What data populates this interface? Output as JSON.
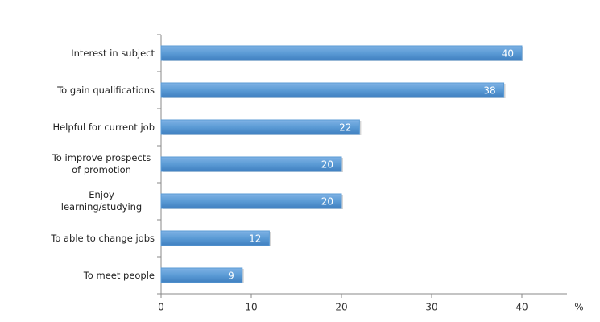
{
  "chart_data": {
    "type": "bar",
    "orientation": "horizontal",
    "categories": [
      "Interest in subject",
      "To gain qualifications",
      "Helpful for current job",
      "To improve prospects of promotion",
      "Enjoy learning/studying",
      "To able to change jobs",
      "To meet people"
    ],
    "values": [
      40,
      38,
      22,
      20,
      20,
      12,
      9
    ],
    "color": "#5b9bd5",
    "xlabel": "%",
    "xlim": [
      0,
      45
    ],
    "xticks": [
      0,
      10,
      20,
      30,
      40
    ]
  }
}
